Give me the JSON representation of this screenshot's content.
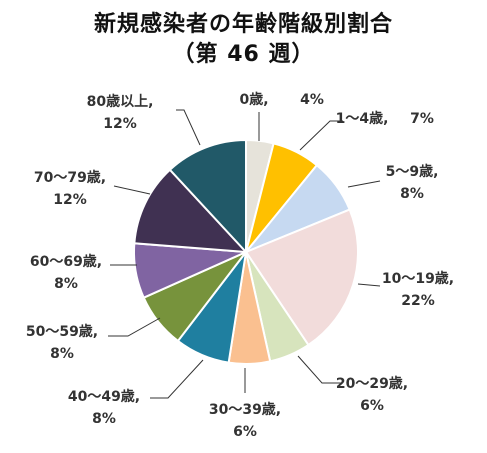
{
  "chart_data": {
    "type": "pie",
    "title": "新規感染者の年齢階級別割合",
    "subtitle": "（第 46 週）",
    "slices": [
      {
        "label": "0歳,",
        "pct_label": "4%",
        "value": 4,
        "color": "#e6e3da"
      },
      {
        "label": "1～4歳,",
        "pct_label": "7%",
        "value": 7,
        "color": "#ffc000"
      },
      {
        "label": "5～9歳,",
        "pct_label": "8%",
        "value": 8,
        "color": "#c6d9f1"
      },
      {
        "label": "10～19歳,",
        "pct_label": "22%",
        "value": 22,
        "color": "#f2dcdb"
      },
      {
        "label": "20～29歳,",
        "pct_label": "6%",
        "value": 6,
        "color": "#d7e4bd"
      },
      {
        "label": "30～39歳,",
        "pct_label": "6%",
        "value": 6,
        "color": "#fac090"
      },
      {
        "label": "40～49歳,",
        "pct_label": "8%",
        "value": 8,
        "color": "#1f7fa0"
      },
      {
        "label": "50～59歳,",
        "pct_label": "8%",
        "value": 8,
        "color": "#77933c"
      },
      {
        "label": "60～69歳,",
        "pct_label": "8%",
        "value": 8,
        "color": "#8064a2"
      },
      {
        "label": "70～79歳,",
        "pct_label": "12%",
        "value": 12,
        "color": "#403152"
      },
      {
        "label": "80歳以上,",
        "pct_label": "12%",
        "value": 12,
        "color": "#215968"
      }
    ]
  }
}
